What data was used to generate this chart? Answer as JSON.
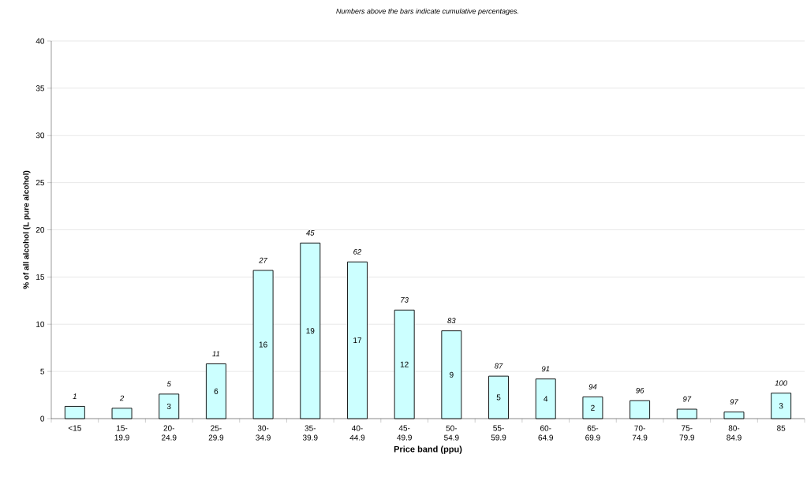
{
  "chart_data": {
    "type": "bar",
    "title": "Numbers above the bars indicate cumulative percentages.",
    "xlabel": "Price band (ppu)",
    "ylabel": "% of all alcohol (L pure alcohol)",
    "categories": [
      "<15",
      "15-19.9",
      "20-24.9",
      "25-29.9",
      "30-34.9",
      "35-39.9",
      "40-44.9",
      "45-49.9",
      "50-54.9",
      "55-59.9",
      "60-64.9",
      "65-69.9",
      "70-74.9",
      "75-79.9",
      "80-84.9",
      "85"
    ],
    "values": [
      1.3,
      1.1,
      2.6,
      5.8,
      15.7,
      18.6,
      16.6,
      11.5,
      9.3,
      4.5,
      4.2,
      2.3,
      1.9,
      1.0,
      0.7,
      2.7
    ],
    "value_labels": [
      null,
      null,
      "3",
      "6",
      "16",
      "19",
      "17",
      "12",
      "9",
      "5",
      "4",
      "2",
      null,
      null,
      null,
      "3"
    ],
    "color": "#ccffff",
    "ylim": [
      0,
      40
    ],
    "yticks": [
      0,
      5,
      10,
      15,
      20,
      25,
      30,
      35,
      40
    ],
    "grid": "y",
    "annotations": [
      {
        "text": "1",
        "x": "<15",
        "y": 1.3
      },
      {
        "text": "2",
        "x": "15-19.9",
        "y": 1.1
      },
      {
        "text": "5",
        "x": "20-24.9",
        "y": 2.6
      },
      {
        "text": "11",
        "x": "25-29.9",
        "y": 5.8
      },
      {
        "text": "27",
        "x": "30-34.9",
        "y": 15.7
      },
      {
        "text": "45",
        "x": "35-39.9",
        "y": 18.6
      },
      {
        "text": "62",
        "x": "40-44.9",
        "y": 16.6
      },
      {
        "text": "73",
        "x": "45-49.9",
        "y": 11.5
      },
      {
        "text": "83",
        "x": "50-54.9",
        "y": 9.3
      },
      {
        "text": "87",
        "x": "55-59.9",
        "y": 4.5
      },
      {
        "text": "91",
        "x": "60-64.9",
        "y": 4.2
      },
      {
        "text": "94",
        "x": "65-69.9",
        "y": 2.3
      },
      {
        "text": "96",
        "x": "70-74.9",
        "y": 1.9
      },
      {
        "text": "97",
        "x": "75-79.9",
        "y": 1.0
      },
      {
        "text": "97",
        "x": "80-84.9",
        "y": 0.7
      },
      {
        "text": "100",
        "x": "85",
        "y": 2.7
      }
    ]
  }
}
